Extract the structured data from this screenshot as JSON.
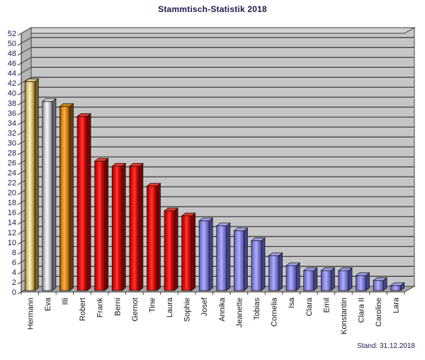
{
  "title": "Stammtisch-Statistik 2018",
  "footer": {
    "stand_label": "Stand: 31.12.2018"
  },
  "chart_data": {
    "type": "bar",
    "title": "Stammtisch-Statistik 2018",
    "categories": [
      "Hermann",
      "Eva",
      "Illi",
      "Robert",
      "Frank",
      "Berni",
      "Gernot",
      "Tine",
      "Laura",
      "Sophie",
      "Josef",
      "Annika",
      "Jeanette",
      "Tobias",
      "Cornelia",
      "Isa",
      "Clara",
      "Emil",
      "Konstantin",
      "Clara II",
      "Caroline",
      "Lara"
    ],
    "values": [
      42,
      38,
      37,
      35,
      26,
      25,
      25,
      21,
      16,
      15,
      14,
      13,
      12,
      10,
      7,
      5,
      4,
      4,
      4,
      3,
      2,
      1
    ],
    "bar_colors": [
      "gold",
      "silver",
      "bronze",
      "red",
      "red",
      "red",
      "red",
      "red",
      "red",
      "red",
      "blue",
      "blue",
      "blue",
      "blue",
      "blue",
      "blue",
      "blue",
      "blue",
      "blue",
      "blue",
      "blue",
      "blue"
    ],
    "xlabel": "",
    "ylabel": "",
    "ylim": [
      0,
      52
    ],
    "ytick_step": 2,
    "grid": true,
    "legend_position": "none",
    "annotation": "Stand: 31.12.2018",
    "palettes": {
      "gold": {
        "stops": [
          [
            0,
            "#9c7d2a"
          ],
          [
            0.3,
            "#e6d28a"
          ],
          [
            0.5,
            "#faf2cc"
          ],
          [
            0.72,
            "#d2b766"
          ],
          [
            1,
            "#8a6d1f"
          ]
        ],
        "top": "#e2ce8c",
        "side": "#79611c"
      },
      "silver": {
        "stops": [
          [
            0,
            "#7e7e88"
          ],
          [
            0.3,
            "#d9d9e2"
          ],
          [
            0.5,
            "#f5f5fa"
          ],
          [
            0.72,
            "#bfbfca"
          ],
          [
            1,
            "#74747e"
          ]
        ],
        "top": "#d6d6e0",
        "side": "#65656f"
      },
      "bronze": {
        "stops": [
          [
            0,
            "#8a5404"
          ],
          [
            0.3,
            "#eb9427"
          ],
          [
            0.5,
            "#ffae3c"
          ],
          [
            0.72,
            "#cf7d12"
          ],
          [
            1,
            "#7c4a02"
          ]
        ],
        "top": "#de8d1a",
        "side": "#6b3f02"
      },
      "red": {
        "stops": [
          [
            0,
            "#9c0404"
          ],
          [
            0.32,
            "#f11414"
          ],
          [
            0.5,
            "#ff3c2e"
          ],
          [
            0.72,
            "#d40808"
          ],
          [
            1,
            "#8c0202"
          ]
        ],
        "top": "#f13426",
        "side": "#7c0101"
      },
      "blue": {
        "stops": [
          [
            0,
            "#5c5cb4"
          ],
          [
            0.32,
            "#9393ea"
          ],
          [
            0.5,
            "#b0b0fa"
          ],
          [
            0.72,
            "#7b7bd6"
          ],
          [
            1,
            "#5252a6"
          ]
        ],
        "top": "#9f9ff0",
        "side": "#42428e"
      }
    },
    "frame_colors": {
      "back_wall": "#c6c6c6",
      "top_face": "#d2d2d2",
      "left_wall": "#b4b4b4",
      "floor": "#a6a6a6",
      "grid_dark": "#5e5e5e",
      "grid_light": "#dcdcdc",
      "frame_line": "#3c3c3c",
      "bar_outline": "#1a1a1a"
    },
    "text_colors": {
      "title": "#1b1b4d",
      "ticks": "#1b1b4d",
      "categories": "#161616",
      "annotation": "#1b1b4d"
    }
  }
}
